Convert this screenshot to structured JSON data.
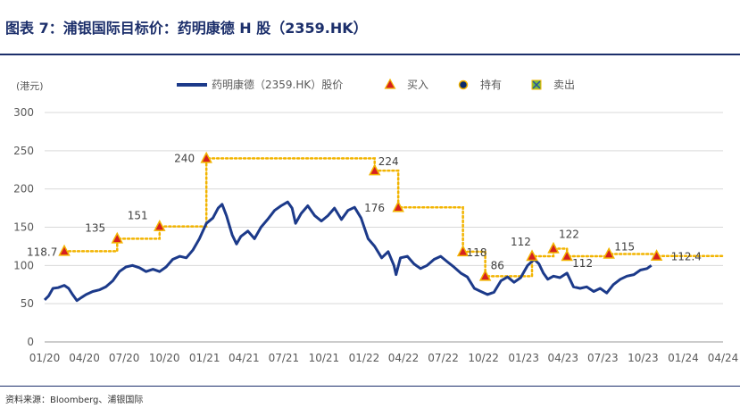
{
  "figure": {
    "title": "图表 7：浦银国际目标价：药明康德 H 股（2359.HK）",
    "source": "资料来源：Bloomberg、浦银国际"
  },
  "colors": {
    "title": "#1c2f6b",
    "price_line": "#1c3a8a",
    "target_line": "#f2b400",
    "buy_marker": "#d62020",
    "grid": "#d9d9d9",
    "axis_text": "#595959"
  },
  "chart_data": {
    "type": "line",
    "ylabel": "(港元)",
    "ylim": [
      0,
      300
    ],
    "yticks": [
      0,
      50,
      100,
      150,
      200,
      250,
      300
    ],
    "grid": "horizontal",
    "legend_position": "top",
    "x_range": [
      "2020-01-01",
      "2024-04-01"
    ],
    "xticks": [
      {
        "date": "2020-01-01",
        "label": "01/20"
      },
      {
        "date": "2020-04-01",
        "label": "04/20"
      },
      {
        "date": "2020-07-01",
        "label": "07/20"
      },
      {
        "date": "2020-10-01",
        "label": "10/20"
      },
      {
        "date": "2021-01-01",
        "label": "01/21"
      },
      {
        "date": "2021-04-01",
        "label": "04/21"
      },
      {
        "date": "2021-07-01",
        "label": "07/21"
      },
      {
        "date": "2021-10-01",
        "label": "10/21"
      },
      {
        "date": "2022-01-01",
        "label": "01/22"
      },
      {
        "date": "2022-04-01",
        "label": "04/22"
      },
      {
        "date": "2022-07-01",
        "label": "07/22"
      },
      {
        "date": "2022-10-01",
        "label": "10/22"
      },
      {
        "date": "2023-01-01",
        "label": "01/23"
      },
      {
        "date": "2023-04-01",
        "label": "04/23"
      },
      {
        "date": "2023-07-01",
        "label": "07/23"
      },
      {
        "date": "2023-10-01",
        "label": "10/23"
      },
      {
        "date": "2024-01-01",
        "label": "01/24"
      },
      {
        "date": "2024-04-01",
        "label": "04/24"
      }
    ],
    "legend": [
      {
        "key": "price",
        "label": "药明康德（2359.HK）股价",
        "symbol": "line"
      },
      {
        "key": "buy",
        "label": "买入",
        "symbol": "triangle"
      },
      {
        "key": "hold",
        "label": "持有",
        "symbol": "circle"
      },
      {
        "key": "sell",
        "label": "卖出",
        "symbol": "square-x"
      }
    ],
    "series": [
      {
        "name": "药明康德（2359.HK）股价",
        "points": [
          [
            "2020-01-01",
            55
          ],
          [
            "2020-01-10",
            60
          ],
          [
            "2020-01-20",
            70
          ],
          [
            "2020-02-01",
            71
          ],
          [
            "2020-02-15",
            74
          ],
          [
            "2020-02-25",
            70
          ],
          [
            "2020-03-05",
            62
          ],
          [
            "2020-03-15",
            54
          ],
          [
            "2020-03-25",
            58
          ],
          [
            "2020-04-05",
            62
          ],
          [
            "2020-04-20",
            66
          ],
          [
            "2020-05-05",
            68
          ],
          [
            "2020-05-20",
            72
          ],
          [
            "2020-06-05",
            80
          ],
          [
            "2020-06-20",
            92
          ],
          [
            "2020-07-05",
            98
          ],
          [
            "2020-07-20",
            100
          ],
          [
            "2020-08-05",
            97
          ],
          [
            "2020-08-20",
            92
          ],
          [
            "2020-09-05",
            95
          ],
          [
            "2020-09-20",
            92
          ],
          [
            "2020-10-05",
            98
          ],
          [
            "2020-10-20",
            108
          ],
          [
            "2020-11-05",
            112
          ],
          [
            "2020-11-20",
            110
          ],
          [
            "2020-12-05",
            120
          ],
          [
            "2020-12-20",
            135
          ],
          [
            "2021-01-05",
            155
          ],
          [
            "2021-01-20",
            162
          ],
          [
            "2021-02-01",
            175
          ],
          [
            "2021-02-10",
            180
          ],
          [
            "2021-02-20",
            165
          ],
          [
            "2021-03-05",
            140
          ],
          [
            "2021-03-15",
            128
          ],
          [
            "2021-03-25",
            138
          ],
          [
            "2021-04-10",
            145
          ],
          [
            "2021-04-25",
            135
          ],
          [
            "2021-05-10",
            150
          ],
          [
            "2021-05-25",
            160
          ],
          [
            "2021-06-10",
            172
          ],
          [
            "2021-06-25",
            178
          ],
          [
            "2021-07-10",
            183
          ],
          [
            "2021-07-20",
            175
          ],
          [
            "2021-07-28",
            155
          ],
          [
            "2021-08-10",
            168
          ],
          [
            "2021-08-25",
            178
          ],
          [
            "2021-09-10",
            165
          ],
          [
            "2021-09-25",
            158
          ],
          [
            "2021-10-10",
            165
          ],
          [
            "2021-10-25",
            175
          ],
          [
            "2021-11-10",
            160
          ],
          [
            "2021-11-25",
            172
          ],
          [
            "2021-12-10",
            176
          ],
          [
            "2021-12-25",
            162
          ],
          [
            "2022-01-10",
            135
          ],
          [
            "2022-01-25",
            125
          ],
          [
            "2022-02-10",
            110
          ],
          [
            "2022-02-25",
            118
          ],
          [
            "2022-03-10",
            100
          ],
          [
            "2022-03-15",
            88
          ],
          [
            "2022-03-25",
            110
          ],
          [
            "2022-04-10",
            112
          ],
          [
            "2022-04-25",
            102
          ],
          [
            "2022-05-10",
            96
          ],
          [
            "2022-05-25",
            100
          ],
          [
            "2022-06-10",
            108
          ],
          [
            "2022-06-25",
            112
          ],
          [
            "2022-07-10",
            105
          ],
          [
            "2022-07-25",
            98
          ],
          [
            "2022-08-10",
            90
          ],
          [
            "2022-08-25",
            85
          ],
          [
            "2022-09-10",
            70
          ],
          [
            "2022-09-25",
            66
          ],
          [
            "2022-10-10",
            62
          ],
          [
            "2022-10-25",
            65
          ],
          [
            "2022-11-10",
            80
          ],
          [
            "2022-11-25",
            85
          ],
          [
            "2022-12-10",
            78
          ],
          [
            "2022-12-25",
            84
          ],
          [
            "2023-01-10",
            100
          ],
          [
            "2023-01-25",
            108
          ],
          [
            "2023-02-05",
            102
          ],
          [
            "2023-02-15",
            90
          ],
          [
            "2023-02-25",
            82
          ],
          [
            "2023-03-10",
            86
          ],
          [
            "2023-03-25",
            84
          ],
          [
            "2023-04-10",
            90
          ],
          [
            "2023-04-25",
            72
          ],
          [
            "2023-05-10",
            70
          ],
          [
            "2023-05-25",
            72
          ],
          [
            "2023-06-10",
            66
          ],
          [
            "2023-06-25",
            70
          ],
          [
            "2023-07-10",
            64
          ],
          [
            "2023-07-25",
            75
          ],
          [
            "2023-08-10",
            82
          ],
          [
            "2023-08-25",
            86
          ],
          [
            "2023-09-10",
            88
          ],
          [
            "2023-09-25",
            94
          ],
          [
            "2023-10-10",
            96
          ],
          [
            "2023-10-20",
            100
          ]
        ]
      }
    ],
    "target_prices": [
      {
        "date": "2020-02-15",
        "value": 118.7,
        "rating": "buy"
      },
      {
        "date": "2020-06-15",
        "value": 135,
        "rating": "buy"
      },
      {
        "date": "2020-09-20",
        "value": 151,
        "rating": "buy"
      },
      {
        "date": "2021-01-05",
        "value": 240,
        "rating": "buy"
      },
      {
        "date": "2022-01-25",
        "value": 224,
        "rating": "buy"
      },
      {
        "date": "2022-03-20",
        "value": 176,
        "rating": "buy"
      },
      {
        "date": "2022-08-15",
        "value": 118,
        "rating": "buy"
      },
      {
        "date": "2022-10-05",
        "value": 86,
        "rating": "buy"
      },
      {
        "date": "2023-01-20",
        "value": 112,
        "rating": "buy"
      },
      {
        "date": "2023-03-10",
        "value": 122,
        "rating": "buy"
      },
      {
        "date": "2023-04-10",
        "value": 112,
        "rating": "buy"
      },
      {
        "date": "2023-07-15",
        "value": 115,
        "rating": "buy"
      },
      {
        "date": "2023-11-01",
        "value": 112.4,
        "rating": "buy"
      }
    ],
    "target_line_end": "2024-04-01",
    "target_labels": [
      "118.7",
      "135",
      "151",
      "240",
      "224",
      "176",
      "118",
      "86",
      "112",
      "122",
      "112",
      "115",
      "112.4"
    ]
  }
}
